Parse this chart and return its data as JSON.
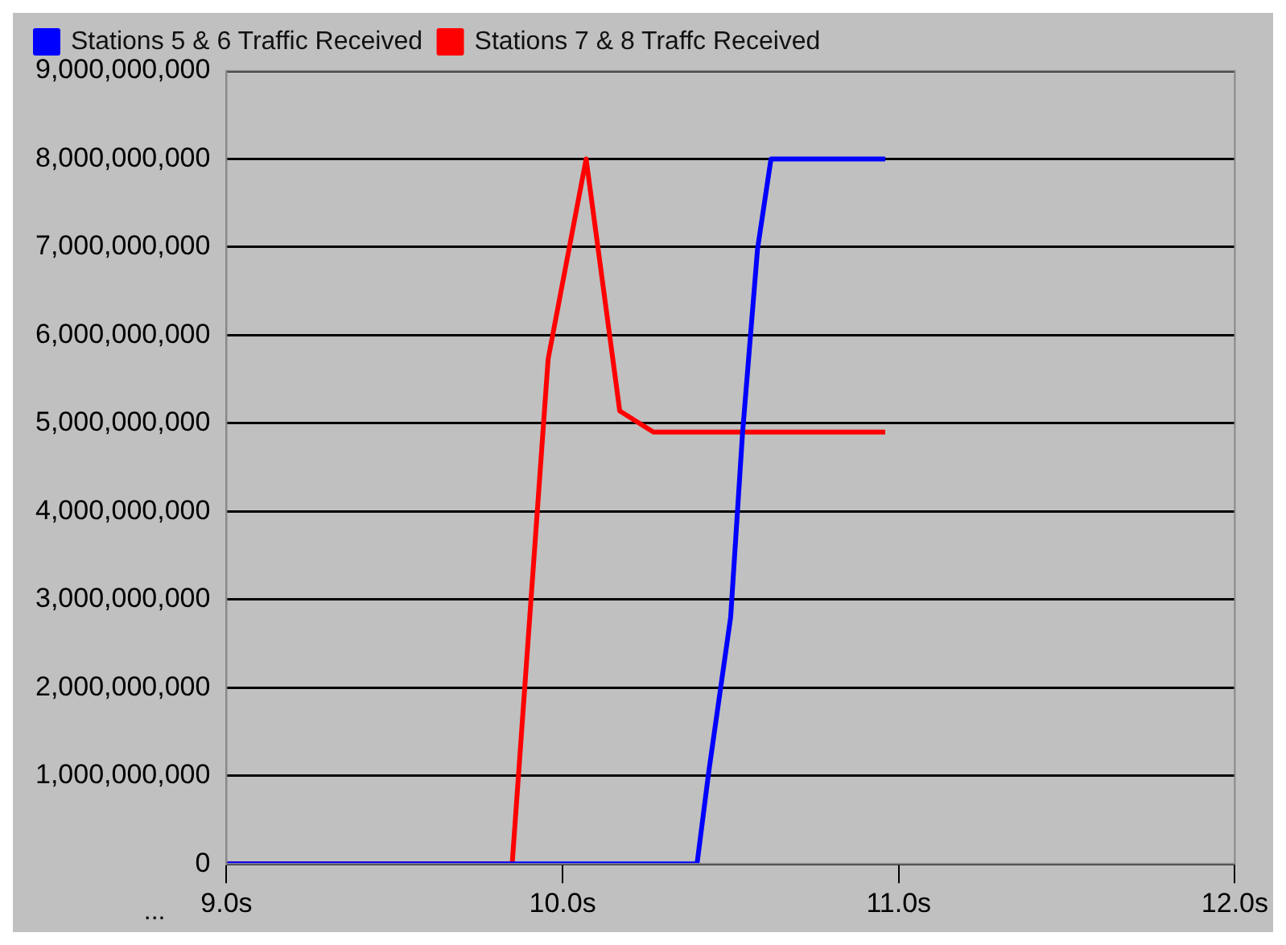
{
  "chart_data": {
    "type": "line",
    "series": [
      {
        "name": "Stations 5 & 6 Traffic Received",
        "color": "#0000ff",
        "x": [
          9.0,
          10.4,
          10.435,
          10.5,
          10.535,
          10.58,
          10.62,
          10.96
        ],
        "values": [
          0,
          0,
          1050000000,
          2800000000,
          4870000000,
          6980000000,
          8000000000,
          8000000000
        ]
      },
      {
        "name": "Stations 7 & 8 Traffc Received",
        "color": "#ff0000",
        "x": [
          9.0,
          9.85,
          9.957,
          10.07,
          10.17,
          10.27,
          10.96
        ],
        "values": [
          0,
          0,
          5730000000,
          8000000000,
          5140000000,
          4900000000,
          4900000000
        ]
      }
    ],
    "xlim": [
      9,
      12
    ],
    "xticks": [
      {
        "value": 9,
        "label": "9.0s"
      },
      {
        "value": 10,
        "label": "10.0s"
      },
      {
        "value": 11,
        "label": "11.0s"
      },
      {
        "value": 12,
        "label": "12.0s"
      }
    ],
    "ylim": [
      0,
      9000000000
    ],
    "yticks": [
      0,
      {
        "value": 1000000000,
        "label": "1,000,000,000"
      },
      {
        "value": 2000000000,
        "label": "2,000,000,000"
      },
      {
        "value": 3000000000,
        "label": "3,000,000,000"
      },
      {
        "value": 4000000000,
        "label": "4,000,000,000"
      },
      {
        "value": 5000000000,
        "label": "5,000,000,000"
      },
      {
        "value": 6000000000,
        "label": "6,000,000,000"
      },
      {
        "value": 7000000000,
        "label": "7,000,000,000"
      },
      {
        "value": 8000000000,
        "label": "8,000,000,000"
      },
      {
        "value": 9000000000,
        "label": "9,000,000,000"
      }
    ],
    "grid": "y",
    "legend": "top left",
    "marker": "none",
    "line_style": "solid",
    "annotations": [
      "..."
    ]
  }
}
